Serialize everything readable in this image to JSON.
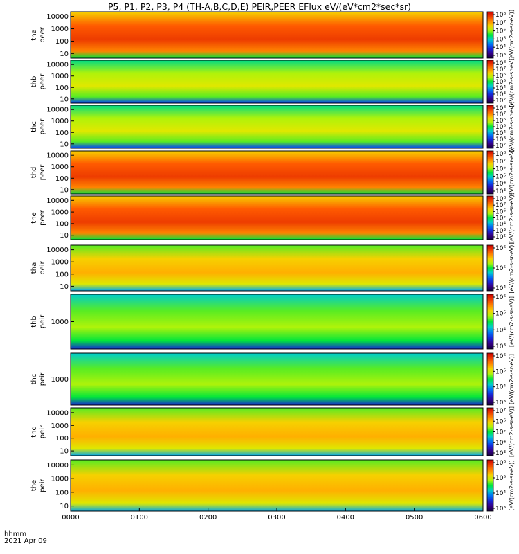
{
  "chart_data": {
    "type": "heatmap",
    "title": "P5, P1, P2, P3, P4 (TH-A,B,C,D,E) PEIR,PEER EFlux eV/(eV*cm2*sec*sr)",
    "x_tick_labels": [
      "0000",
      "0100",
      "0200",
      "0300",
      "0400",
      "0500",
      "0600"
    ],
    "x_range": [
      "0000",
      "0600"
    ],
    "time_label_1": "hhmm",
    "time_label_2": "2021 Apr 09",
    "colorbar_unit": "[eV/(cm2-s-sr-eV)] (eV/(eV*cm2*sec*sr))",
    "colorbar_unit_short": "[eV/(cm2-s-sr-eV)]",
    "panels": [
      {
        "probe": "tha",
        "species": "peer",
        "ylabel_1": "tha",
        "ylabel_2": "peer",
        "y_ticks": [
          "10",
          "100",
          "1000",
          "10000"
        ],
        "cb_ticks": [
          "10³",
          "10⁴",
          "10⁵",
          "10⁶",
          "10⁷",
          "10⁸"
        ],
        "bg_level": 0.85
      },
      {
        "probe": "thb",
        "species": "peer",
        "ylabel_1": "thb",
        "ylabel_2": "peer",
        "y_ticks": [
          "10",
          "100",
          "1000",
          "10000"
        ],
        "cb_ticks": [
          "10²",
          "10³",
          "10⁴",
          "10⁵",
          "10⁶",
          "10⁷",
          "10⁸"
        ],
        "bg_level": 0.6
      },
      {
        "probe": "thc",
        "species": "peer",
        "ylabel_1": "thc",
        "ylabel_2": "peer",
        "y_ticks": [
          "10",
          "100",
          "1000",
          "10000"
        ],
        "cb_ticks": [
          "10²",
          "10³",
          "10⁴",
          "10⁵",
          "10⁶",
          "10⁷",
          "10⁸"
        ],
        "bg_level": 0.6
      },
      {
        "probe": "thd",
        "species": "peer",
        "ylabel_1": "thd",
        "ylabel_2": "peer",
        "y_ticks": [
          "10",
          "100",
          "1000",
          "10000"
        ],
        "cb_ticks": [
          "10³",
          "10⁴",
          "10⁵",
          "10⁶",
          "10⁷",
          "10⁸"
        ],
        "bg_level": 0.85
      },
      {
        "probe": "the",
        "species": "peer",
        "ylabel_1": "the",
        "ylabel_2": "peer",
        "y_ticks": [
          "10",
          "100",
          "1000",
          "10000"
        ],
        "cb_ticks": [
          "10²",
          "10³",
          "10⁴",
          "10⁵",
          "10⁶",
          "10⁷",
          "10⁸"
        ],
        "bg_level": 0.85
      },
      {
        "probe": "tha",
        "species": "peir",
        "ylabel_1": "tha",
        "ylabel_2": "peir",
        "y_ticks": [
          "10",
          "100",
          "1000",
          "10000"
        ],
        "cb_ticks": [
          "10⁴",
          "10⁵",
          "10⁶"
        ],
        "bg_level": 0.7
      },
      {
        "probe": "thb",
        "species": "peir",
        "ylabel_1": "thb",
        "ylabel_2": "peir",
        "y_ticks": [
          "1000"
        ],
        "cb_ticks": [
          "10³",
          "10⁴",
          "10⁵",
          "10⁶"
        ],
        "bg_level": 0.55
      },
      {
        "probe": "thc",
        "species": "peir",
        "ylabel_1": "thc",
        "ylabel_2": "peir",
        "y_ticks": [
          "1000"
        ],
        "cb_ticks": [
          "10³",
          "10⁴",
          "10⁵",
          "10⁶"
        ],
        "bg_level": 0.55
      },
      {
        "probe": "thd",
        "species": "peir",
        "ylabel_1": "thd",
        "ylabel_2": "peir",
        "y_ticks": [
          "10",
          "100",
          "1000",
          "10000"
        ],
        "cb_ticks": [
          "10³",
          "10⁴",
          "10⁵",
          "10⁶",
          "10⁷"
        ],
        "bg_level": 0.7
      },
      {
        "probe": "the",
        "species": "peir",
        "ylabel_1": "the",
        "ylabel_2": "peir",
        "y_ticks": [
          "10",
          "100",
          "1000",
          "10000"
        ],
        "cb_ticks": [
          "10³",
          "10⁴",
          "10⁵",
          "10⁶"
        ],
        "bg_level": 0.7
      }
    ]
  }
}
